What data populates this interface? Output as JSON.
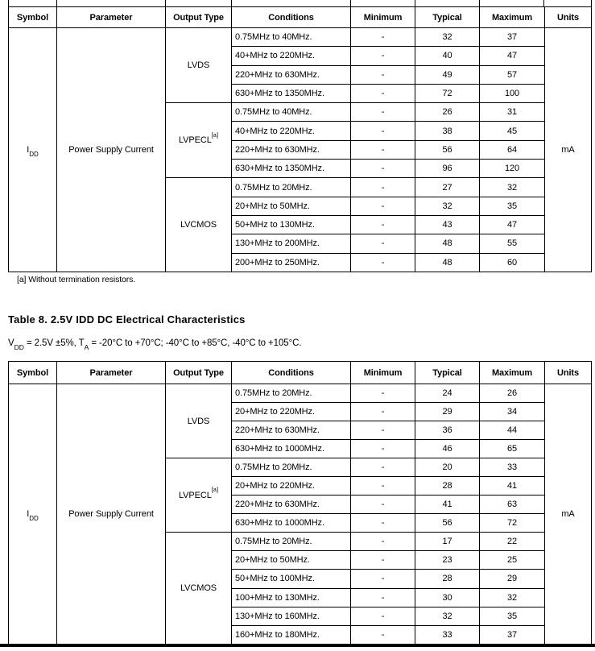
{
  "footnote": "[a] Without termination resistors.",
  "tables": [
    {
      "columns": [
        "Symbol",
        "Parameter",
        "Output Type",
        "Conditions",
        "Minimum",
        "Typical",
        "Maximum",
        "Units"
      ],
      "symbol": {
        "base": "I",
        "sub": "DD"
      },
      "parameter": "Power Supply Current",
      "units": "mA",
      "groups": [
        {
          "output_type": {
            "base": "LVDS",
            "sup": ""
          },
          "rows": [
            {
              "condition": "0.75MHz to 40MHz.",
              "min": "-",
              "typ": "32",
              "max": "37"
            },
            {
              "condition": "40+MHz to 220MHz.",
              "min": "-",
              "typ": "40",
              "max": "47"
            },
            {
              "condition": "220+MHz to 630MHz.",
              "min": "-",
              "typ": "49",
              "max": "57"
            },
            {
              "condition": "630+MHz to 1350MHz.",
              "min": "-",
              "typ": "72",
              "max": "100"
            }
          ]
        },
        {
          "output_type": {
            "base": "LVPECL",
            "sup": "[a]"
          },
          "rows": [
            {
              "condition": "0.75MHz to 40MHz.",
              "min": "-",
              "typ": "26",
              "max": "31"
            },
            {
              "condition": "40+MHz to 220MHz.",
              "min": "-",
              "typ": "38",
              "max": "45"
            },
            {
              "condition": "220+MHz to 630MHz.",
              "min": "-",
              "typ": "56",
              "max": "64"
            },
            {
              "condition": "630+MHz to 1350MHz.",
              "min": "-",
              "typ": "96",
              "max": "120"
            }
          ]
        },
        {
          "output_type": {
            "base": "LVCMOS",
            "sup": ""
          },
          "rows": [
            {
              "condition": "0.75MHz to 20MHz.",
              "min": "-",
              "typ": "27",
              "max": "32"
            },
            {
              "condition": "20+MHz to 50MHz.",
              "min": "-",
              "typ": "32",
              "max": "35"
            },
            {
              "condition": "50+MHz to 130MHz.",
              "min": "-",
              "typ": "43",
              "max": "47"
            },
            {
              "condition": "130+MHz to 200MHz.",
              "min": "-",
              "typ": "48",
              "max": "55"
            },
            {
              "condition": "200+MHz to 250MHz.",
              "min": "-",
              "typ": "48",
              "max": "60"
            }
          ]
        }
      ]
    },
    {
      "title": "Table 8.  2.5V IDD DC Electrical Characteristics",
      "conditions_tokens": [
        {
          "t": "V"
        },
        {
          "t": "DD",
          "sub": true
        },
        {
          "t": " = 2.5V ±5%, T"
        },
        {
          "t": "A",
          "sub": true
        },
        {
          "t": " = -20°C to +70°C; -40°C to +85°C, -40°C to +105°C."
        }
      ],
      "columns": [
        "Symbol",
        "Parameter",
        "Output Type",
        "Conditions",
        "Minimum",
        "Typical",
        "Maximum",
        "Units"
      ],
      "symbol": {
        "base": "I",
        "sub": "DD"
      },
      "parameter": "Power Supply Current",
      "units": "mA",
      "groups": [
        {
          "output_type": {
            "base": "LVDS",
            "sup": ""
          },
          "rows": [
            {
              "condition": "0.75MHz to 20MHz.",
              "min": "-",
              "typ": "24",
              "max": "26"
            },
            {
              "condition": "20+MHz to 220MHz.",
              "min": "-",
              "typ": "29",
              "max": "34"
            },
            {
              "condition": "220+MHz to 630MHz.",
              "min": "-",
              "typ": "36",
              "max": "44"
            },
            {
              "condition": "630+MHz to 1000MHz.",
              "min": "-",
              "typ": "46",
              "max": "65"
            }
          ]
        },
        {
          "output_type": {
            "base": "LVPECL",
            "sup": "[a]"
          },
          "rows": [
            {
              "condition": "0.75MHz to 20MHz.",
              "min": "-",
              "typ": "20",
              "max": "33"
            },
            {
              "condition": "20+MHz to 220MHz.",
              "min": "-",
              "typ": "28",
              "max": "41"
            },
            {
              "condition": "220+MHz to 630MHz.",
              "min": "-",
              "typ": "41",
              "max": "63"
            },
            {
              "condition": "630+MHz to 1000MHz.",
              "min": "-",
              "typ": "56",
              "max": "72"
            }
          ]
        },
        {
          "output_type": {
            "base": "LVCMOS",
            "sup": ""
          },
          "rows": [
            {
              "condition": "0.75MHz to 20MHz.",
              "min": "-",
              "typ": "17",
              "max": "22"
            },
            {
              "condition": "20+MHz to 50MHz.",
              "min": "-",
              "typ": "23",
              "max": "25"
            },
            {
              "condition": "50+MHz to 100MHz.",
              "min": "-",
              "typ": "28",
              "max": "29"
            },
            {
              "condition": "100+MHz to 130MHz.",
              "min": "-",
              "typ": "30",
              "max": "32"
            },
            {
              "condition": "130+MHz to 160MHz.",
              "min": "-",
              "typ": "32",
              "max": "35"
            },
            {
              "condition": "160+MHz to 180MHz.",
              "min": "-",
              "typ": "33",
              "max": "37"
            }
          ]
        }
      ]
    }
  ]
}
